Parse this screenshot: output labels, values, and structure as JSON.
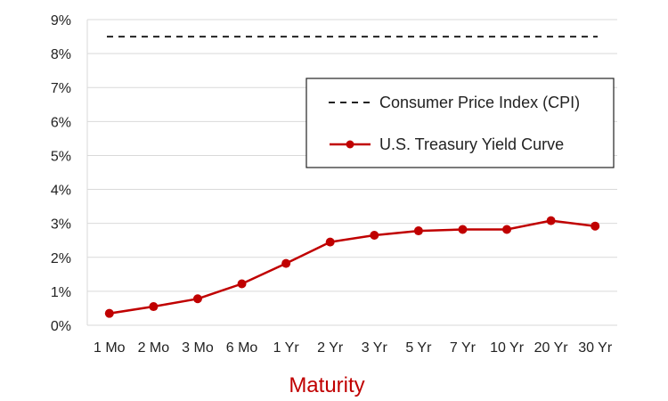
{
  "chart_data": {
    "type": "line",
    "title": "",
    "xlabel": "Maturity",
    "ylabel": "",
    "categories": [
      "1 Mo",
      "2 Mo",
      "3 Mo",
      "6 Mo",
      "1 Yr",
      "2 Yr",
      "3 Yr",
      "5 Yr",
      "7 Yr",
      "10 Yr",
      "20 Yr",
      "30 Yr"
    ],
    "ylim": [
      0,
      9
    ],
    "yticks": [
      "0%",
      "1%",
      "2%",
      "3%",
      "4%",
      "5%",
      "6%",
      "7%",
      "8%",
      "9%"
    ],
    "grid": true,
    "legend_position": "right",
    "series": [
      {
        "name": "U.S. Treasury Yield Curve",
        "style": "solid-with-markers",
        "color": "#c00000",
        "values": [
          0.35,
          0.55,
          0.78,
          1.22,
          1.82,
          2.45,
          2.65,
          2.78,
          2.82,
          2.82,
          3.08,
          2.92
        ]
      },
      {
        "name": "Consumer Price Index (CPI)",
        "style": "dashed",
        "color": "#222222",
        "values": [
          8.5,
          8.5,
          8.5,
          8.5,
          8.5,
          8.5,
          8.5,
          8.5,
          8.5,
          8.5,
          8.5,
          8.5
        ]
      }
    ],
    "legend": [
      {
        "label": "Consumer Price Index (CPI)",
        "style": "dashed"
      },
      {
        "label": "U.S. Treasury Yield Curve",
        "style": "solid-with-markers"
      }
    ]
  },
  "colors": {
    "axis_title": "#c00000",
    "grid": "#d9d9d9"
  }
}
